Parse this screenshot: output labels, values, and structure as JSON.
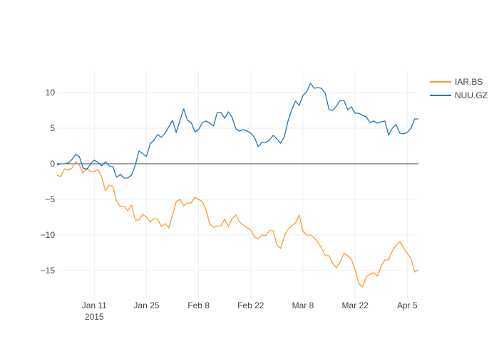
{
  "chart_data": {
    "type": "line",
    "title": "",
    "xlabel": "",
    "ylabel": "",
    "x_start": "2015-01-01",
    "x_end": "2015-04-08",
    "ylim": [
      -19,
      13
    ],
    "yticks": [
      10,
      5,
      0,
      -5,
      -10,
      -15
    ],
    "ytick_labels": [
      "10",
      "5",
      "0",
      "−5",
      "−10",
      "−15"
    ],
    "xticks": [
      {
        "date": "2015-01-11",
        "label": "Jan 11",
        "sublabel": "2015"
      },
      {
        "date": "2015-01-25",
        "label": "Jan 25",
        "sublabel": ""
      },
      {
        "date": "2015-02-08",
        "label": "Feb 8",
        "sublabel": ""
      },
      {
        "date": "2015-02-22",
        "label": "Feb 22",
        "sublabel": ""
      },
      {
        "date": "2015-03-08",
        "label": "Mar 8",
        "sublabel": ""
      },
      {
        "date": "2015-03-22",
        "label": "Mar 22",
        "sublabel": ""
      },
      {
        "date": "2015-04-05",
        "label": "Apr 5",
        "sublabel": ""
      }
    ],
    "grid": true,
    "legend_position": "top-right",
    "series": [
      {
        "name": "IAR.BS",
        "color": "#ff9933",
        "points": [
          [
            "2015-01-01",
            -1.6
          ],
          [
            "2015-01-02",
            -1.8
          ],
          [
            "2015-01-03",
            -0.7
          ],
          [
            "2015-01-04",
            -0.9
          ],
          [
            "2015-01-05",
            -0.6
          ],
          [
            "2015-01-06",
            0.3
          ],
          [
            "2015-01-07",
            -0.2
          ],
          [
            "2015-01-08",
            -1.3
          ],
          [
            "2015-01-09",
            -0.6
          ],
          [
            "2015-01-10",
            -1.1
          ],
          [
            "2015-01-11",
            -1.1
          ],
          [
            "2015-01-12",
            -0.8
          ],
          [
            "2015-01-13",
            -1.9
          ],
          [
            "2015-01-14",
            -3.8
          ],
          [
            "2015-01-15",
            -3.0
          ],
          [
            "2015-01-16",
            -3.2
          ],
          [
            "2015-01-17",
            -5.3
          ],
          [
            "2015-01-18",
            -6.0
          ],
          [
            "2015-01-19",
            -6.0
          ],
          [
            "2015-01-20",
            -6.6
          ],
          [
            "2015-01-21",
            -5.8
          ],
          [
            "2015-01-22",
            -7.9
          ],
          [
            "2015-01-23",
            -7.9
          ],
          [
            "2015-01-24",
            -7.1
          ],
          [
            "2015-01-25",
            -7.5
          ],
          [
            "2015-01-26",
            -8.2
          ],
          [
            "2015-01-27",
            -7.7
          ],
          [
            "2015-01-28",
            -7.8
          ],
          [
            "2015-01-29",
            -8.8
          ],
          [
            "2015-01-30",
            -8.4
          ],
          [
            "2015-01-31",
            -9.0
          ],
          [
            "2015-02-01",
            -7.2
          ],
          [
            "2015-02-02",
            -5.3
          ],
          [
            "2015-02-03",
            -5.0
          ],
          [
            "2015-02-04",
            -5.9
          ],
          [
            "2015-02-05",
            -5.5
          ],
          [
            "2015-02-06",
            -5.5
          ],
          [
            "2015-02-07",
            -4.7
          ],
          [
            "2015-02-08",
            -5.0
          ],
          [
            "2015-02-09",
            -5.3
          ],
          [
            "2015-02-10",
            -6.5
          ],
          [
            "2015-02-11",
            -8.5
          ],
          [
            "2015-02-12",
            -8.9
          ],
          [
            "2015-02-13",
            -8.8
          ],
          [
            "2015-02-14",
            -8.7
          ],
          [
            "2015-02-15",
            -7.8
          ],
          [
            "2015-02-16",
            -8.8
          ],
          [
            "2015-02-17",
            -7.7
          ],
          [
            "2015-02-18",
            -7.2
          ],
          [
            "2015-02-19",
            -8.2
          ],
          [
            "2015-02-20",
            -8.6
          ],
          [
            "2015-02-21",
            -9.0
          ],
          [
            "2015-02-22",
            -9.3
          ],
          [
            "2015-02-23",
            -10.3
          ],
          [
            "2015-02-24",
            -10.5
          ],
          [
            "2015-02-25",
            -10.0
          ],
          [
            "2015-02-26",
            -10.1
          ],
          [
            "2015-02-27",
            -9.4
          ],
          [
            "2015-02-28",
            -9.4
          ],
          [
            "2015-03-01",
            -11.4
          ],
          [
            "2015-03-02",
            -11.9
          ],
          [
            "2015-03-03",
            -10.2
          ],
          [
            "2015-03-04",
            -9.2
          ],
          [
            "2015-03-05",
            -8.7
          ],
          [
            "2015-03-06",
            -8.3
          ],
          [
            "2015-03-07",
            -7.2
          ],
          [
            "2015-03-08",
            -9.5
          ],
          [
            "2015-03-09",
            -10.0
          ],
          [
            "2015-03-10",
            -10.0
          ],
          [
            "2015-03-11",
            -10.4
          ],
          [
            "2015-03-12",
            -11.0
          ],
          [
            "2015-03-13",
            -11.8
          ],
          [
            "2015-03-14",
            -12.9
          ],
          [
            "2015-03-15",
            -12.9
          ],
          [
            "2015-03-16",
            -14.0
          ],
          [
            "2015-03-17",
            -14.6
          ],
          [
            "2015-03-18",
            -13.8
          ],
          [
            "2015-03-19",
            -12.6
          ],
          [
            "2015-03-20",
            -12.9
          ],
          [
            "2015-03-21",
            -13.4
          ],
          [
            "2015-03-22",
            -14.9
          ],
          [
            "2015-03-23",
            -16.8
          ],
          [
            "2015-03-24",
            -17.3
          ],
          [
            "2015-03-25",
            -15.9
          ],
          [
            "2015-03-26",
            -15.5
          ],
          [
            "2015-03-27",
            -15.3
          ],
          [
            "2015-03-28",
            -15.8
          ],
          [
            "2015-03-29",
            -14.3
          ],
          [
            "2015-03-30",
            -13.5
          ],
          [
            "2015-03-31",
            -13.5
          ],
          [
            "2015-04-01",
            -12.2
          ],
          [
            "2015-04-02",
            -11.5
          ],
          [
            "2015-04-03",
            -10.9
          ],
          [
            "2015-04-04",
            -11.8
          ],
          [
            "2015-04-05",
            -12.6
          ],
          [
            "2015-04-06",
            -13.3
          ],
          [
            "2015-04-07",
            -15.2
          ],
          [
            "2015-04-08",
            -14.9
          ]
        ]
      },
      {
        "name": "NUU.GZ",
        "color": "#1f77b4",
        "points": [
          [
            "2015-01-01",
            -0.2
          ],
          [
            "2015-01-02",
            0.0
          ],
          [
            "2015-01-03",
            0.0
          ],
          [
            "2015-01-04",
            0.1
          ],
          [
            "2015-01-05",
            0.6
          ],
          [
            "2015-01-06",
            1.3
          ],
          [
            "2015-01-07",
            1.0
          ],
          [
            "2015-01-08",
            -0.6
          ],
          [
            "2015-01-09",
            -0.8
          ],
          [
            "2015-01-10",
            0.0
          ],
          [
            "2015-01-11",
            0.5
          ],
          [
            "2015-01-12",
            0.2
          ],
          [
            "2015-01-13",
            -0.3
          ],
          [
            "2015-01-14",
            0.3
          ],
          [
            "2015-01-15",
            -0.3
          ],
          [
            "2015-01-16",
            -0.4
          ],
          [
            "2015-01-17",
            -1.9
          ],
          [
            "2015-01-18",
            -1.5
          ],
          [
            "2015-01-19",
            -2.0
          ],
          [
            "2015-01-20",
            -2.0
          ],
          [
            "2015-01-21",
            -1.6
          ],
          [
            "2015-01-22",
            -0.2
          ],
          [
            "2015-01-23",
            1.8
          ],
          [
            "2015-01-24",
            1.4
          ],
          [
            "2015-01-25",
            1.0
          ],
          [
            "2015-01-26",
            2.8
          ],
          [
            "2015-01-27",
            3.3
          ],
          [
            "2015-01-28",
            4.1
          ],
          [
            "2015-01-29",
            3.7
          ],
          [
            "2015-01-30",
            4.3
          ],
          [
            "2015-01-31",
            5.2
          ],
          [
            "2015-02-01",
            6.1
          ],
          [
            "2015-02-02",
            4.4
          ],
          [
            "2015-02-03",
            6.1
          ],
          [
            "2015-02-04",
            7.7
          ],
          [
            "2015-02-05",
            6.1
          ],
          [
            "2015-02-06",
            5.8
          ],
          [
            "2015-02-07",
            4.5
          ],
          [
            "2015-02-08",
            4.8
          ],
          [
            "2015-02-09",
            5.8
          ],
          [
            "2015-02-10",
            6.0
          ],
          [
            "2015-02-11",
            5.7
          ],
          [
            "2015-02-12",
            5.3
          ],
          [
            "2015-02-13",
            7.2
          ],
          [
            "2015-02-14",
            7.2
          ],
          [
            "2015-02-15",
            6.4
          ],
          [
            "2015-02-16",
            7.3
          ],
          [
            "2015-02-17",
            6.5
          ],
          [
            "2015-02-18",
            4.9
          ],
          [
            "2015-02-19",
            4.6
          ],
          [
            "2015-02-20",
            4.8
          ],
          [
            "2015-02-21",
            4.6
          ],
          [
            "2015-02-22",
            4.3
          ],
          [
            "2015-02-23",
            3.7
          ],
          [
            "2015-02-24",
            2.4
          ],
          [
            "2015-02-25",
            3.0
          ],
          [
            "2015-02-26",
            3.0
          ],
          [
            "2015-02-27",
            3.3
          ],
          [
            "2015-02-28",
            4.0
          ],
          [
            "2015-03-01",
            3.5
          ],
          [
            "2015-03-02",
            2.9
          ],
          [
            "2015-03-03",
            3.8
          ],
          [
            "2015-03-04",
            6.0
          ],
          [
            "2015-03-05",
            7.6
          ],
          [
            "2015-03-06",
            8.8
          ],
          [
            "2015-03-07",
            8.2
          ],
          [
            "2015-03-08",
            9.6
          ],
          [
            "2015-03-09",
            10.1
          ],
          [
            "2015-03-10",
            11.3
          ],
          [
            "2015-03-11",
            10.6
          ],
          [
            "2015-03-12",
            10.7
          ],
          [
            "2015-03-13",
            10.6
          ],
          [
            "2015-03-14",
            9.9
          ],
          [
            "2015-03-15",
            7.6
          ],
          [
            "2015-03-16",
            7.5
          ],
          [
            "2015-03-17",
            8.1
          ],
          [
            "2015-03-18",
            8.9
          ],
          [
            "2015-03-19",
            8.9
          ],
          [
            "2015-03-20",
            7.6
          ],
          [
            "2015-03-21",
            8.0
          ],
          [
            "2015-03-22",
            7.1
          ],
          [
            "2015-03-23",
            7.1
          ],
          [
            "2015-03-24",
            6.8
          ],
          [
            "2015-03-25",
            6.6
          ],
          [
            "2015-03-26",
            5.8
          ],
          [
            "2015-03-27",
            6.0
          ],
          [
            "2015-03-28",
            5.7
          ],
          [
            "2015-03-29",
            5.9
          ],
          [
            "2015-03-30",
            6.0
          ],
          [
            "2015-03-31",
            4.0
          ],
          [
            "2015-04-01",
            5.0
          ],
          [
            "2015-04-02",
            5.5
          ],
          [
            "2015-04-03",
            4.3
          ],
          [
            "2015-04-04",
            4.2
          ],
          [
            "2015-04-05",
            4.4
          ],
          [
            "2015-04-06",
            5.0
          ],
          [
            "2015-04-07",
            6.3
          ],
          [
            "2015-04-08",
            6.3
          ]
        ]
      }
    ]
  }
}
